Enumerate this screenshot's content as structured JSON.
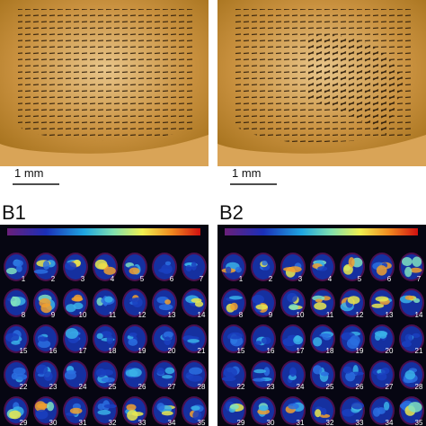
{
  "panels_top": [
    {
      "scale_label": "1 mm"
    },
    {
      "scale_label": "1 mm"
    }
  ],
  "panels_bottom": [
    {
      "label": "B1",
      "cells": [
        "1",
        "2",
        "3",
        "4",
        "5",
        "6",
        "7",
        "8",
        "9",
        "10",
        "11",
        "12",
        "13",
        "14",
        "15",
        "16",
        "17",
        "18",
        "19",
        "20",
        "21",
        "22",
        "23",
        "24",
        "25",
        "26",
        "27",
        "28",
        "29",
        "30",
        "31",
        "32",
        "33",
        "34",
        "35"
      ]
    },
    {
      "label": "B2",
      "cells": [
        "1",
        "2",
        "3",
        "4",
        "5",
        "6",
        "7",
        "8",
        "9",
        "10",
        "11",
        "12",
        "13",
        "14",
        "15",
        "16",
        "17",
        "18",
        "19",
        "20",
        "21",
        "22",
        "23",
        "24",
        "25",
        "26",
        "27",
        "28",
        "29",
        "30",
        "31",
        "32",
        "33",
        "34",
        "35"
      ]
    }
  ]
}
